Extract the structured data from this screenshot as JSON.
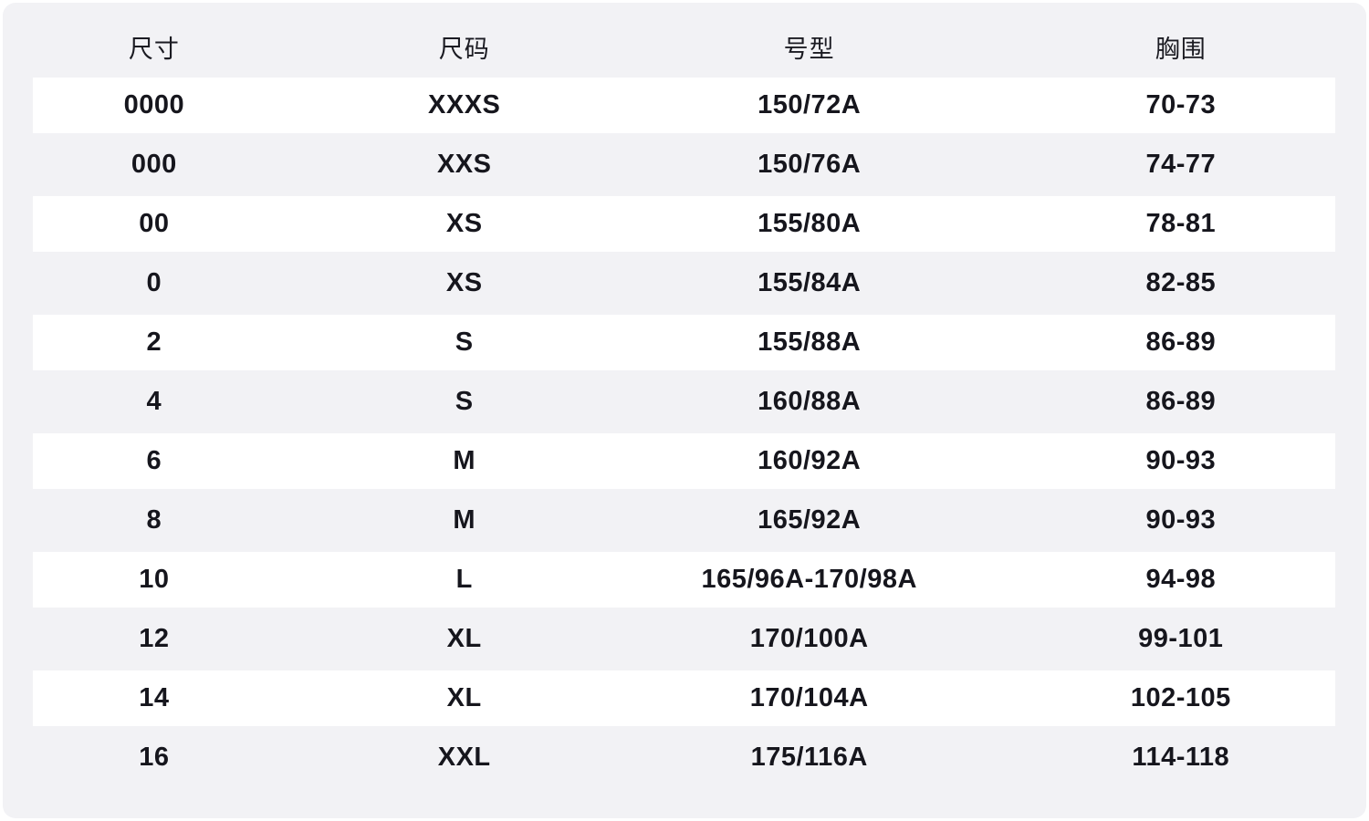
{
  "colors": {
    "outer_background": "#ffffff",
    "panel_background": "#f2f2f5",
    "stripe_background": "#ffffff",
    "text": "#16161d"
  },
  "table": {
    "columns": [
      {
        "key": "size",
        "label": "尺寸"
      },
      {
        "key": "size_code",
        "label": "尺码"
      },
      {
        "key": "type_number",
        "label": "号型"
      },
      {
        "key": "bust",
        "label": "胸围"
      }
    ],
    "rows": [
      [
        "0000",
        "XXXS",
        "150/72A",
        "70-73"
      ],
      [
        "000",
        "XXS",
        "150/76A",
        "74-77"
      ],
      [
        "00",
        "XS",
        "155/80A",
        "78-81"
      ],
      [
        "0",
        "XS",
        "155/84A",
        "82-85"
      ],
      [
        "2",
        "S",
        "155/88A",
        "86-89"
      ],
      [
        "4",
        "S",
        "160/88A",
        "86-89"
      ],
      [
        "6",
        "M",
        "160/92A",
        "90-93"
      ],
      [
        "8",
        "M",
        "165/92A",
        "90-93"
      ],
      [
        "10",
        "L",
        "165/96A-170/98A",
        "94-98"
      ],
      [
        "12",
        "XL",
        "170/100A",
        "99-101"
      ],
      [
        "14",
        "XL",
        "170/104A",
        "102-105"
      ],
      [
        "16",
        "XXL",
        "175/116A",
        "114-118"
      ]
    ]
  }
}
